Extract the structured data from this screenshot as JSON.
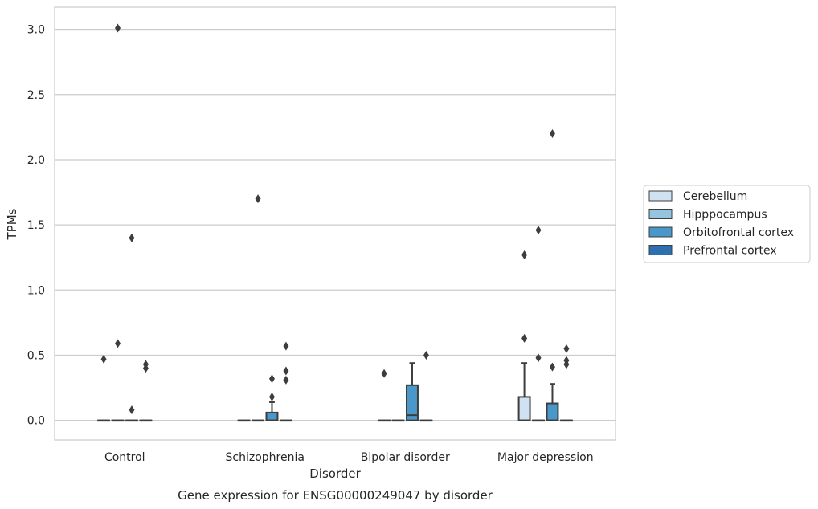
{
  "caption": "Gene expression for ENSG00000249047 by disorder",
  "chart_data": {
    "type": "box",
    "xlabel": "Disorder",
    "ylabel": "TPMs",
    "ylim": [
      -0.15,
      3.17
    ],
    "yticks": [
      0.0,
      0.5,
      1.0,
      1.5,
      2.0,
      2.5,
      3.0
    ],
    "ytick_labels": [
      "0.0",
      "0.5",
      "1.0",
      "1.5",
      "2.0",
      "2.5",
      "3.0"
    ],
    "categories": [
      "Control",
      "Schizophrenia",
      "Bipolar disorder",
      "Major depression"
    ],
    "grid": "horizontal",
    "legend_position": "right",
    "series": [
      {
        "name": "Cerebellum",
        "color": "#d0e1f2",
        "boxes": [
          {
            "min": 0,
            "q1": 0,
            "median": 0,
            "q3": 0,
            "max": 0,
            "outliers": [
              0.47
            ]
          },
          {
            "min": 0,
            "q1": 0,
            "median": 0,
            "q3": 0,
            "max": 0,
            "outliers": []
          },
          {
            "min": 0,
            "q1": 0,
            "median": 0,
            "q3": 0,
            "max": 0,
            "outliers": [
              0.36
            ]
          },
          {
            "min": 0,
            "q1": 0,
            "median": 0,
            "q3": 0.18,
            "max": 0.44,
            "outliers": [
              0.63,
              1.27
            ]
          }
        ]
      },
      {
        "name": "Hipppocampus",
        "color": "#94c4df",
        "boxes": [
          {
            "min": 0,
            "q1": 0,
            "median": 0,
            "q3": 0,
            "max": 0,
            "outliers": [
              0.59,
              3.01
            ]
          },
          {
            "min": 0,
            "q1": 0,
            "median": 0,
            "q3": 0,
            "max": 0,
            "outliers": [
              1.7
            ]
          },
          {
            "min": 0,
            "q1": 0,
            "median": 0,
            "q3": 0,
            "max": 0,
            "outliers": []
          },
          {
            "min": 0,
            "q1": 0,
            "median": 0,
            "q3": 0,
            "max": 0,
            "outliers": [
              0.48,
              1.46
            ]
          }
        ]
      },
      {
        "name": "Orbitofrontal cortex",
        "color": "#4a98c9",
        "boxes": [
          {
            "min": 0,
            "q1": 0,
            "median": 0,
            "q3": 0,
            "max": 0,
            "outliers": [
              0.08,
              1.4
            ]
          },
          {
            "min": 0,
            "q1": 0,
            "median": 0,
            "q3": 0.06,
            "max": 0.14,
            "outliers": [
              0.18,
              0.32
            ]
          },
          {
            "min": 0,
            "q1": 0,
            "median": 0.04,
            "q3": 0.27,
            "max": 0.44,
            "outliers": []
          },
          {
            "min": 0,
            "q1": 0,
            "median": 0,
            "q3": 0.13,
            "max": 0.28,
            "outliers": [
              0.41,
              2.2
            ]
          }
        ]
      },
      {
        "name": "Prefrontal cortex",
        "color": "#2e6fb0",
        "boxes": [
          {
            "min": 0,
            "q1": 0,
            "median": 0,
            "q3": 0,
            "max": 0,
            "outliers": [
              0.4,
              0.43
            ]
          },
          {
            "min": 0,
            "q1": 0,
            "median": 0,
            "q3": 0,
            "max": 0,
            "outliers": [
              0.31,
              0.38,
              0.57
            ]
          },
          {
            "min": 0,
            "q1": 0,
            "median": 0,
            "q3": 0,
            "max": 0,
            "outliers": [
              0.5
            ]
          },
          {
            "min": 0,
            "q1": 0,
            "median": 0,
            "q3": 0,
            "max": 0,
            "outliers": [
              0.43,
              0.46,
              0.55
            ]
          }
        ]
      }
    ]
  }
}
